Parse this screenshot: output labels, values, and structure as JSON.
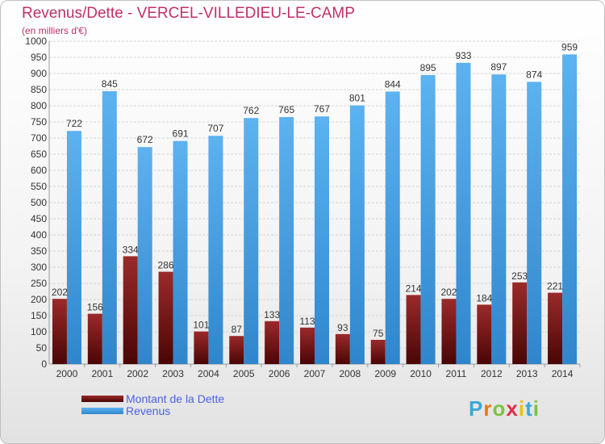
{
  "header": {
    "title": "Revenus/Dette - VERCEL-VILLEDIEU-LE-CAMP",
    "subtitle": "(en milliers d'€)"
  },
  "legend": {
    "items": [
      {
        "label": "Montant de la Dette",
        "color": "#7a1414"
      },
      {
        "label": "Revenus",
        "color": "#4ea3e6"
      }
    ]
  },
  "logo": {
    "letters": [
      {
        "char": "P",
        "color": "#3aa8d8"
      },
      {
        "char": "r",
        "color": "#e07a1e"
      },
      {
        "char": "o",
        "color": "#7cc242"
      },
      {
        "char": "x",
        "color": "#e0304a"
      },
      {
        "char": "i",
        "color": "#e8c21a"
      },
      {
        "char": "t",
        "color": "#3aa8d8"
      },
      {
        "char": "i",
        "color": "#7cc242"
      }
    ]
  },
  "chart_data": {
    "type": "bar",
    "title": "Revenus/Dette - VERCEL-VILLEDIEU-LE-CAMP",
    "subtitle": "(en milliers d'€)",
    "categories": [
      "2000",
      "2001",
      "2002",
      "2003",
      "2004",
      "2005",
      "2006",
      "2007",
      "2008",
      "2009",
      "2010",
      "2011",
      "2012",
      "2013",
      "2014"
    ],
    "series": [
      {
        "name": "Montant de la Dette",
        "color": "#7a1414",
        "values": [
          202,
          156,
          334,
          286,
          101,
          87,
          133,
          113,
          93,
          75,
          214,
          202,
          184,
          253,
          221
        ]
      },
      {
        "name": "Revenus",
        "color": "#4ea3e6",
        "values": [
          722,
          845,
          672,
          691,
          707,
          762,
          765,
          767,
          801,
          844,
          895,
          933,
          897,
          874,
          959
        ]
      }
    ],
    "ylim": [
      0,
      1000
    ],
    "yticks": [
      0,
      50,
      100,
      150,
      200,
      250,
      300,
      350,
      400,
      450,
      500,
      550,
      600,
      650,
      700,
      750,
      800,
      850,
      900,
      950,
      1000
    ],
    "grid": true,
    "legend_position": "bottom-left"
  }
}
